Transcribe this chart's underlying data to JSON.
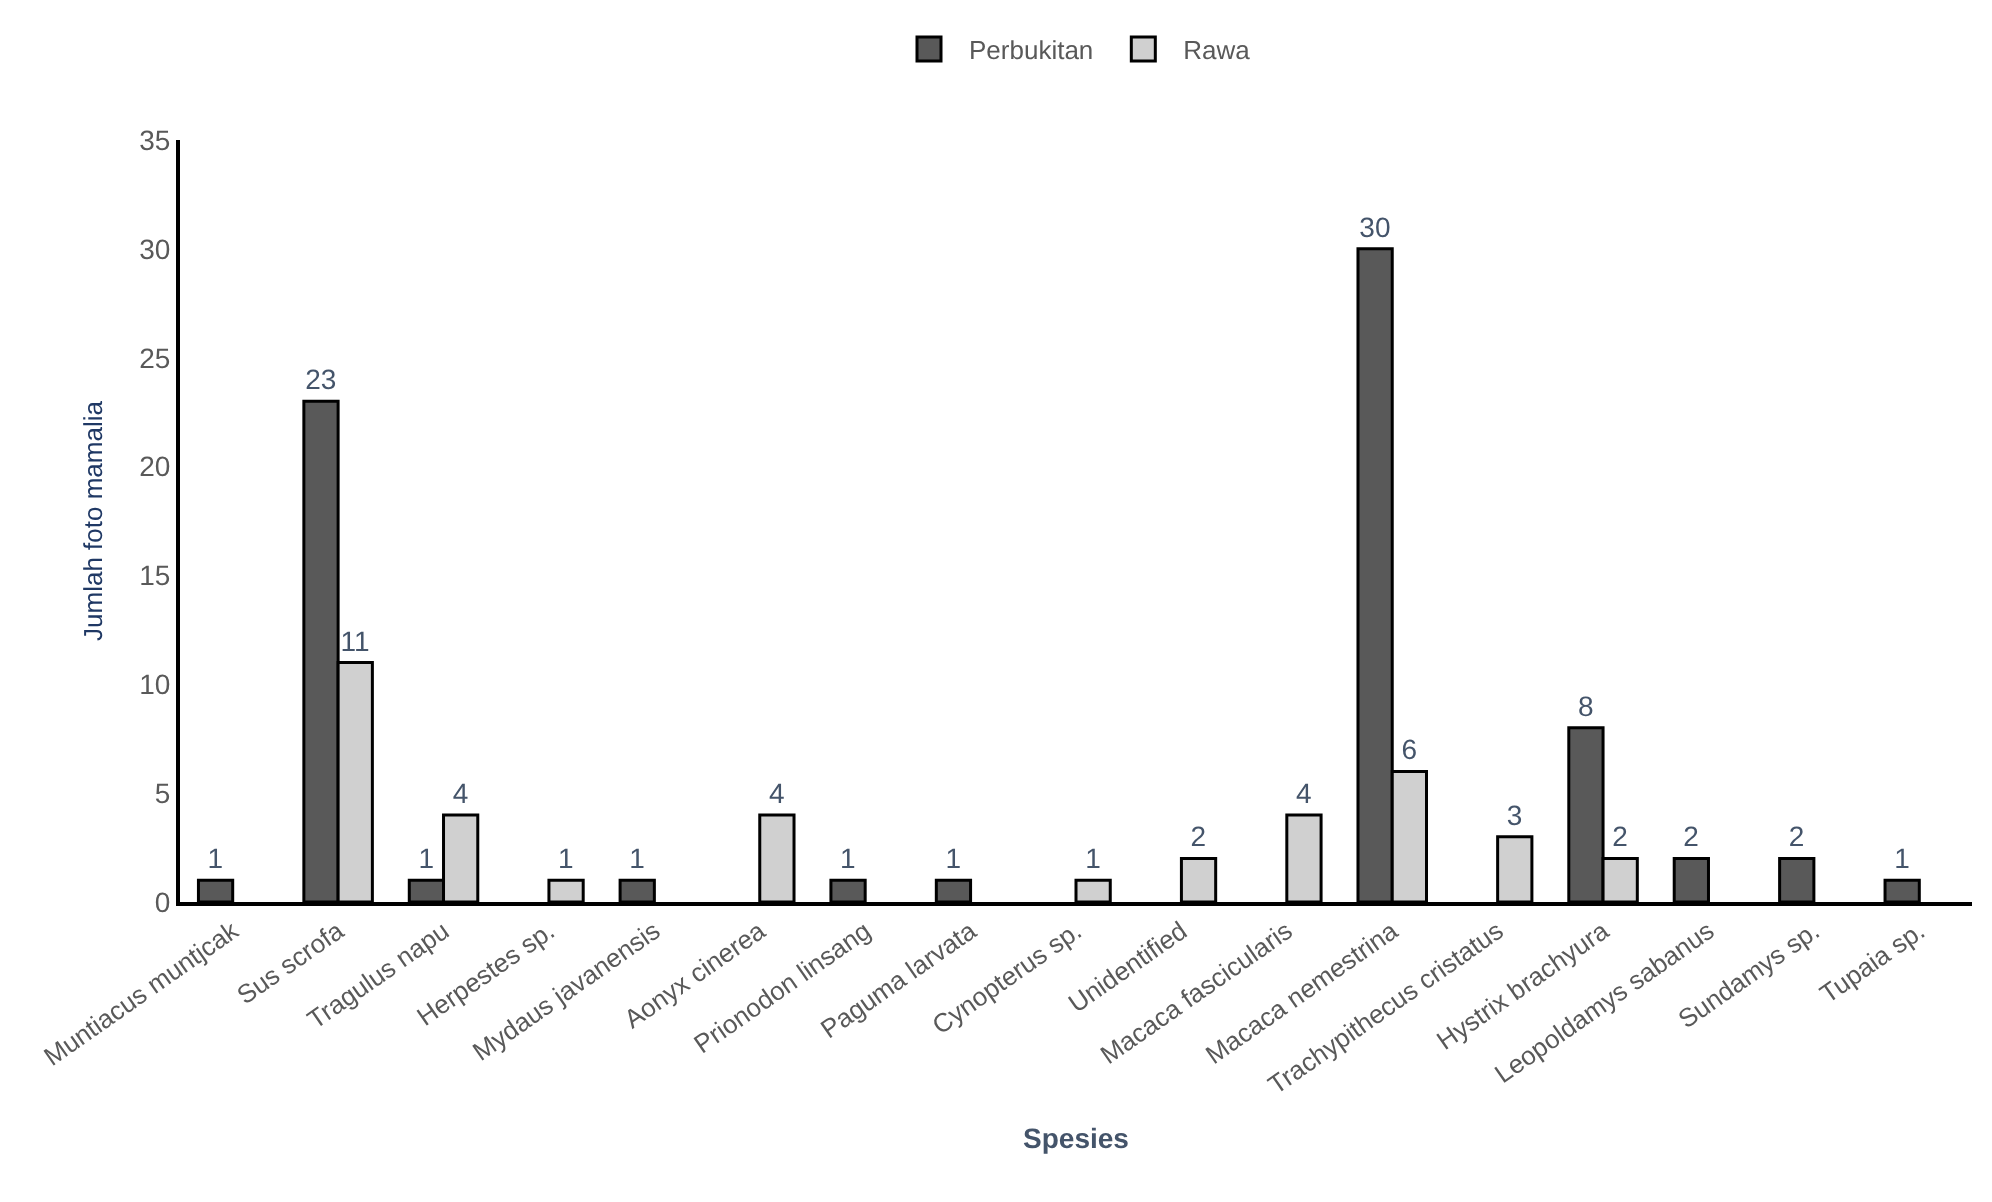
{
  "chart_data": {
    "type": "bar",
    "xlabel": "Spesies",
    "ylabel": "Jumlah foto mamalia",
    "categories": [
      "Muntiacus muntjcak",
      "Sus scrofa",
      "Tragulus napu",
      "Herpestes sp.",
      "Mydaus javanensis",
      "Aonyx cinerea",
      "Prionodon linsang",
      "Paguma larvata",
      "Cynopterus sp.",
      "Unidentified",
      "Macaca fascicularis",
      "Macaca nemestrina",
      "Trachypithecus cristatus",
      "Hystrix brachyura",
      "Leopoldamys sabanus",
      "Sundamys sp.",
      "Tupaia sp."
    ],
    "series": [
      {
        "name": "Perbukitan",
        "color": "#595959",
        "values": [
          1,
          23,
          1,
          null,
          1,
          null,
          1,
          1,
          null,
          null,
          null,
          30,
          null,
          8,
          2,
          2,
          1
        ]
      },
      {
        "name": "Rawa",
        "color": "#d0d0d0",
        "values": [
          null,
          11,
          4,
          1,
          null,
          4,
          null,
          null,
          1,
          2,
          4,
          6,
          3,
          2,
          null,
          null,
          null
        ]
      }
    ],
    "ylim": [
      0,
      35
    ],
    "yticks": [
      0,
      5,
      10,
      15,
      20,
      25,
      30,
      35
    ],
    "data_labels": true,
    "legend": "top"
  }
}
